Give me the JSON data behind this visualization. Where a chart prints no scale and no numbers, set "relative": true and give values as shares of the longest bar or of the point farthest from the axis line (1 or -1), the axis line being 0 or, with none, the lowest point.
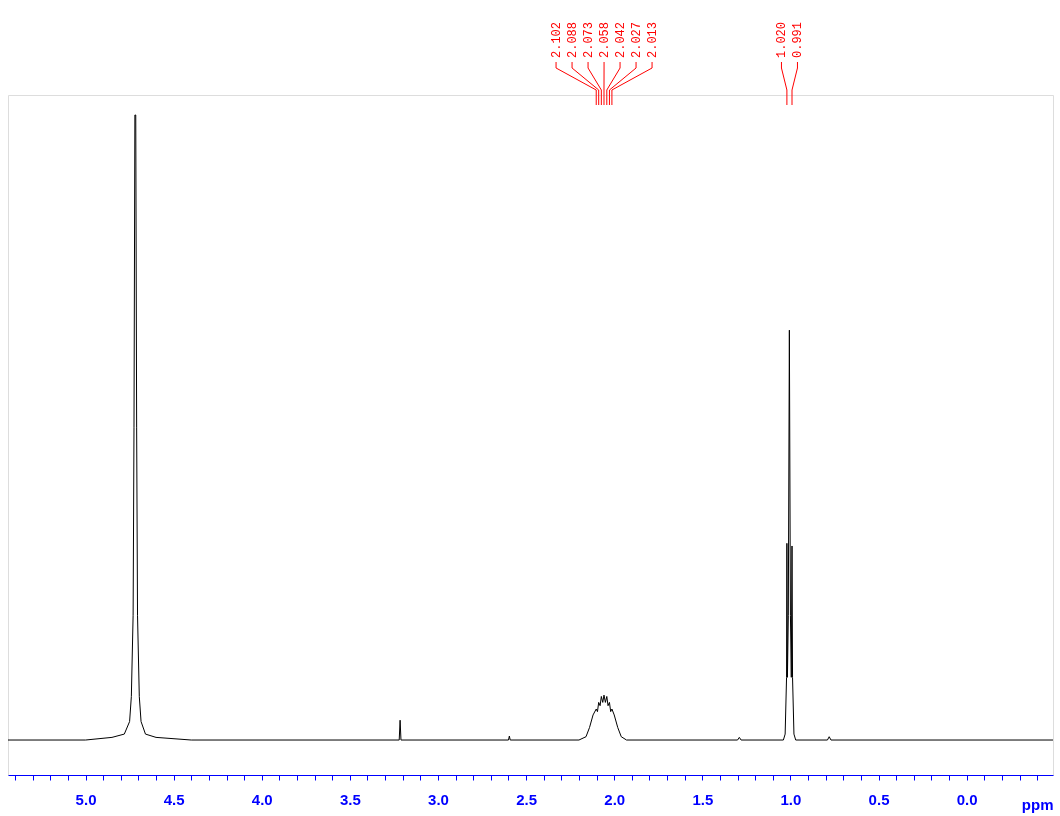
{
  "chart_data": {
    "type": "line",
    "relative": true,
    "xlabel": "ppm",
    "xlim": [
      5.44,
      -0.49
    ],
    "xticks": [
      {
        "value": 5.4,
        "label": null
      },
      {
        "value": 5.3,
        "label": null
      },
      {
        "value": 5.2,
        "label": null
      },
      {
        "value": 5.1,
        "label": null
      },
      {
        "value": 5.0,
        "label": "5.0"
      },
      {
        "value": 4.9,
        "label": null
      },
      {
        "value": 4.8,
        "label": null
      },
      {
        "value": 4.7,
        "label": null
      },
      {
        "value": 4.6,
        "label": null
      },
      {
        "value": 4.5,
        "label": "4.5"
      },
      {
        "value": 4.4,
        "label": null
      },
      {
        "value": 4.3,
        "label": null
      },
      {
        "value": 4.2,
        "label": null
      },
      {
        "value": 4.1,
        "label": null
      },
      {
        "value": 4.0,
        "label": "4.0"
      },
      {
        "value": 3.9,
        "label": null
      },
      {
        "value": 3.8,
        "label": null
      },
      {
        "value": 3.7,
        "label": null
      },
      {
        "value": 3.6,
        "label": null
      },
      {
        "value": 3.5,
        "label": "3.5"
      },
      {
        "value": 3.4,
        "label": null
      },
      {
        "value": 3.3,
        "label": null
      },
      {
        "value": 3.2,
        "label": null
      },
      {
        "value": 3.1,
        "label": null
      },
      {
        "value": 3.0,
        "label": "3.0"
      },
      {
        "value": 2.9,
        "label": null
      },
      {
        "value": 2.8,
        "label": null
      },
      {
        "value": 2.7,
        "label": null
      },
      {
        "value": 2.6,
        "label": null
      },
      {
        "value": 2.5,
        "label": "2.5"
      },
      {
        "value": 2.4,
        "label": null
      },
      {
        "value": 2.3,
        "label": null
      },
      {
        "value": 2.2,
        "label": null
      },
      {
        "value": 2.1,
        "label": null
      },
      {
        "value": 2.0,
        "label": "2.0"
      },
      {
        "value": 1.9,
        "label": null
      },
      {
        "value": 1.8,
        "label": null
      },
      {
        "value": 1.7,
        "label": null
      },
      {
        "value": 1.6,
        "label": null
      },
      {
        "value": 1.5,
        "label": "1.5"
      },
      {
        "value": 1.4,
        "label": null
      },
      {
        "value": 1.3,
        "label": null
      },
      {
        "value": 1.2,
        "label": null
      },
      {
        "value": 1.1,
        "label": null
      },
      {
        "value": 1.0,
        "label": "1.0"
      },
      {
        "value": 0.9,
        "label": null
      },
      {
        "value": 0.8,
        "label": null
      },
      {
        "value": 0.7,
        "label": null
      },
      {
        "value": 0.6,
        "label": null
      },
      {
        "value": 0.5,
        "label": "0.5"
      },
      {
        "value": 0.4,
        "label": null
      },
      {
        "value": 0.3,
        "label": null
      },
      {
        "value": 0.2,
        "label": null
      },
      {
        "value": 0.1,
        "label": null
      },
      {
        "value": 0.0,
        "label": "0.0"
      },
      {
        "value": -0.1,
        "label": null
      },
      {
        "value": -0.2,
        "label": null
      },
      {
        "value": -0.3,
        "label": null
      },
      {
        "value": -0.4,
        "label": null
      }
    ],
    "grid": false,
    "series": [
      {
        "color": "#000000",
        "x": [
          5.44,
          5.0,
          4.85,
          4.78,
          4.75,
          4.74,
          4.73,
          4.725,
          4.72,
          4.715,
          4.71,
          4.705,
          4.695,
          4.685,
          4.66,
          4.6,
          4.4,
          3.22,
          3.215,
          3.21,
          2.6,
          2.595,
          2.59,
          2.2,
          2.16,
          2.14,
          2.12,
          2.102,
          2.095,
          2.088,
          2.08,
          2.073,
          2.065,
          2.058,
          2.05,
          2.042,
          2.035,
          2.027,
          2.02,
          2.013,
          2.0,
          1.98,
          1.96,
          1.93,
          1.3,
          1.29,
          1.28,
          1.04,
          1.03,
          1.022,
          1.02,
          1.017,
          1.012,
          1.006,
          1.0,
          0.995,
          0.991,
          0.988,
          0.98,
          0.97,
          0.79,
          0.78,
          0.77,
          -0.49
        ],
        "values": [
          0.053,
          0.053,
          0.057,
          0.062,
          0.081,
          0.119,
          0.242,
          0.527,
          1,
          1,
          0.527,
          0.242,
          0.119,
          0.081,
          0.062,
          0.057,
          0.053,
          0.053,
          0.083,
          0.053,
          0.053,
          0.059,
          0.053,
          0.053,
          0.058,
          0.072,
          0.091,
          0.1,
          0.096,
          0.11,
          0.105,
          0.119,
          0.11,
          0.121,
          0.11,
          0.119,
          0.105,
          0.11,
          0.096,
          0.1,
          0.091,
          0.072,
          0.058,
          0.053,
          0.053,
          0.057,
          0.053,
          0.053,
          0.062,
          0.148,
          0.351,
          0.148,
          0.242,
          0.674,
          0.242,
          0.148,
          0.347,
          0.148,
          0.062,
          0.053,
          0.053,
          0.058,
          0.053,
          0.053
        ]
      }
    ],
    "annotations": [
      {
        "text": "2.102",
        "x": 2.102
      },
      {
        "text": "2.088",
        "x": 2.088
      },
      {
        "text": "2.073",
        "x": 2.073
      },
      {
        "text": "2.058",
        "x": 2.058
      },
      {
        "text": "2.042",
        "x": 2.042
      },
      {
        "text": "2.027",
        "x": 2.027
      },
      {
        "text": "2.013",
        "x": 2.013
      },
      {
        "text": "1.020",
        "x": 1.02
      },
      {
        "text": "0.991",
        "x": 0.991
      }
    ]
  }
}
